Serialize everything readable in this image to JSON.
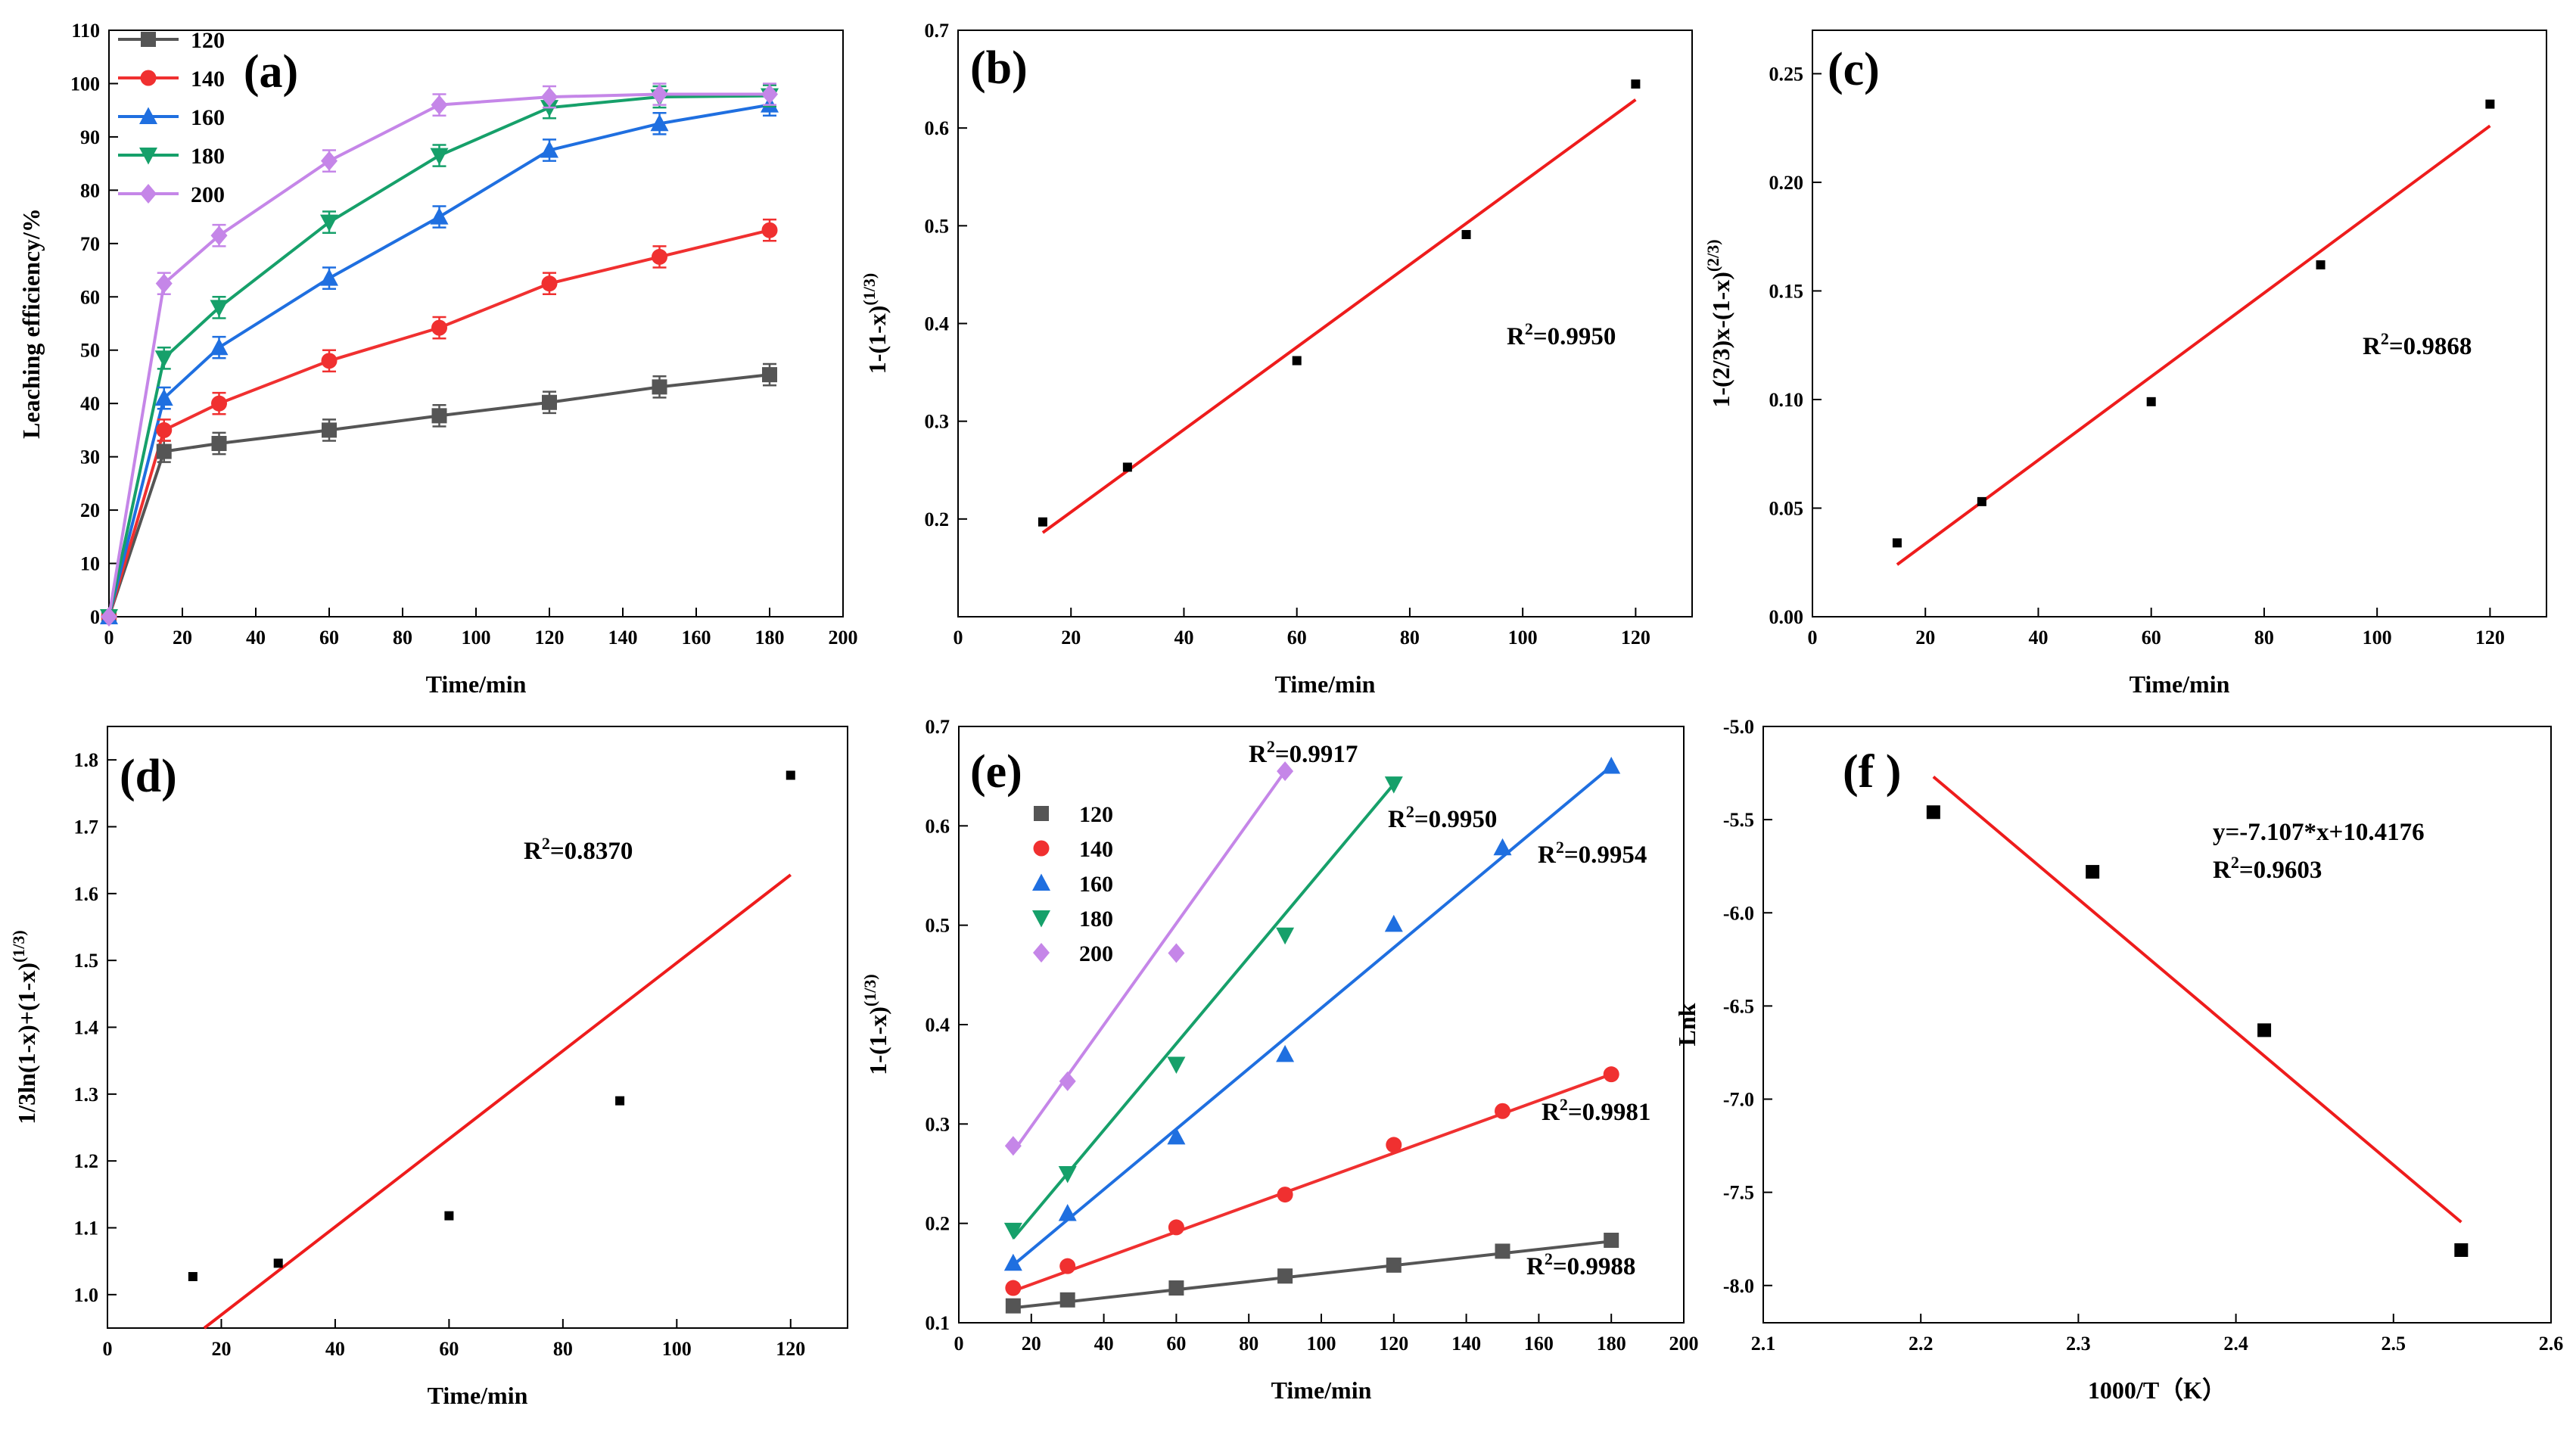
{
  "chart_data": [
    {
      "id": "a",
      "type": "line",
      "panel_label": "(a)",
      "xlabel": "Time/min",
      "ylabel": "Leaching efficiency/%",
      "xlim": [
        0,
        200
      ],
      "ylim": [
        0,
        110
      ],
      "xticks": [
        0,
        20,
        40,
        60,
        80,
        100,
        120,
        140,
        160,
        180,
        200
      ],
      "yticks": [
        0,
        10,
        20,
        30,
        40,
        50,
        60,
        70,
        80,
        90,
        100,
        110
      ],
      "legend": {
        "placement": "top-left"
      },
      "x": [
        0,
        15,
        30,
        60,
        90,
        120,
        150,
        180
      ],
      "series": [
        {
          "name": "120",
          "color": "#555555",
          "marker": "square",
          "values": [
            0,
            31,
            32.5,
            35,
            37.7,
            40.2,
            43.1,
            45.4
          ],
          "error": 2
        },
        {
          "name": "140",
          "color": "#f03030",
          "marker": "circle",
          "values": [
            0,
            35,
            40,
            48,
            54.2,
            62.5,
            67.5,
            72.5
          ],
          "error": 2
        },
        {
          "name": "160",
          "color": "#1f6fe0",
          "marker": "triangle-up",
          "values": [
            0,
            41,
            50.5,
            63.5,
            75,
            87.5,
            92.5,
            96
          ],
          "error": 2
        },
        {
          "name": "180",
          "color": "#16a06a",
          "marker": "triangle-down",
          "values": [
            0,
            48.5,
            58,
            74,
            86.5,
            95.5,
            97.5,
            97.7
          ],
          "error": 2
        },
        {
          "name": "200",
          "color": "#c586e8",
          "marker": "diamond",
          "values": [
            0,
            62.5,
            71.5,
            85.5,
            96,
            97.5,
            98,
            98
          ],
          "error": 2
        }
      ]
    },
    {
      "id": "b",
      "type": "scatter",
      "panel_label": "(b)",
      "xlabel": "Time/min",
      "ylabel": "1-(1-x)^(1/3)",
      "xlim": [
        0,
        130
      ],
      "ylim": [
        0.1,
        0.7
      ],
      "xticks": [
        0,
        20,
        40,
        60,
        80,
        100,
        120
      ],
      "yticks": [
        0.2,
        0.3,
        0.4,
        0.5,
        0.6,
        0.7
      ],
      "points": [
        {
          "x": 15,
          "y": 0.197
        },
        {
          "x": 30,
          "y": 0.253
        },
        {
          "x": 60,
          "y": 0.362
        },
        {
          "x": 90,
          "y": 0.491
        },
        {
          "x": 120,
          "y": 0.645
        }
      ],
      "fit": {
        "x": [
          15,
          120
        ],
        "y": [
          0.186,
          0.629
        ],
        "color": "#ee1c1c"
      },
      "annotation": "R²=0.9950"
    },
    {
      "id": "c",
      "type": "scatter",
      "panel_label": "(c)",
      "xlabel": "Time/min",
      "ylabel": "1-(2/3)x-(1-x)^(2/3)",
      "xlim": [
        0,
        130
      ],
      "ylim": [
        0,
        0.27
      ],
      "xticks": [
        0,
        20,
        40,
        60,
        80,
        100,
        120
      ],
      "yticks": [
        0.0,
        0.05,
        0.1,
        0.15,
        0.2,
        0.25
      ],
      "points": [
        {
          "x": 15,
          "y": 0.034
        },
        {
          "x": 30,
          "y": 0.053
        },
        {
          "x": 60,
          "y": 0.099
        },
        {
          "x": 90,
          "y": 0.162
        },
        {
          "x": 120,
          "y": 0.236
        }
      ],
      "fit": {
        "x": [
          15,
          120
        ],
        "y": [
          0.024,
          0.226
        ],
        "color": "#ee1c1c"
      },
      "annotation": "R²=0.9868"
    },
    {
      "id": "d",
      "type": "scatter",
      "panel_label": "(d)",
      "xlabel": "Time/min",
      "ylabel": "1/3ln(1-x)+(1-x)^(1/3)",
      "xlim": [
        0,
        130
      ],
      "ylim": [
        0.95,
        1.85
      ],
      "xticks": [
        0,
        20,
        40,
        60,
        80,
        100,
        120
      ],
      "yticks": [
        1.0,
        1.1,
        1.2,
        1.3,
        1.4,
        1.5,
        1.6,
        1.7,
        1.8
      ],
      "points": [
        {
          "x": 15,
          "y": 1.027
        },
        {
          "x": 30,
          "y": 1.047
        },
        {
          "x": 60,
          "y": 1.118
        },
        {
          "x": 90,
          "y": 1.29
        },
        {
          "x": 120,
          "y": 1.777
        }
      ],
      "fit": {
        "x": [
          17,
          120
        ],
        "y": [
          0.95,
          1.628
        ],
        "color": "#ee1c1c"
      },
      "annotation": "R²=0.8370"
    },
    {
      "id": "e",
      "type": "scatter",
      "panel_label": "(e)",
      "xlabel": "Time/min",
      "ylabel": "1-(1-x)^(1/3)",
      "xlim": [
        0,
        200
      ],
      "ylim": [
        0.1,
        0.7
      ],
      "xticks": [
        0,
        20,
        40,
        60,
        80,
        100,
        120,
        140,
        160,
        180,
        200
      ],
      "yticks": [
        0.1,
        0.2,
        0.3,
        0.4,
        0.5,
        0.6,
        0.7
      ],
      "legend": {
        "placement": "top-left"
      },
      "series": [
        {
          "name": "120",
          "color": "#555555",
          "marker": "square",
          "x": [
            15,
            30,
            60,
            90,
            120,
            150,
            180
          ],
          "y": [
            0.117,
            0.123,
            0.135,
            0.147,
            0.158,
            0.172,
            0.183
          ],
          "fit": [
            [
              15,
              0.115
            ],
            [
              180,
              0.182
            ]
          ],
          "r2": "R²=0.9988"
        },
        {
          "name": "140",
          "color": "#f03030",
          "marker": "circle",
          "x": [
            15,
            30,
            60,
            90,
            120,
            150,
            180
          ],
          "y": [
            0.135,
            0.157,
            0.196,
            0.229,
            0.279,
            0.313,
            0.35
          ],
          "fit": [
            [
              15,
              0.132
            ],
            [
              180,
              0.35
            ]
          ],
          "r2": "R²=0.9981"
        },
        {
          "name": "160",
          "color": "#1f6fe0",
          "marker": "triangle-up",
          "x": [
            15,
            30,
            60,
            90,
            120,
            150,
            180
          ],
          "y": [
            0.16,
            0.21,
            0.287,
            0.37,
            0.501,
            0.578,
            0.66
          ],
          "fit": [
            [
              15,
              0.158
            ],
            [
              180,
              0.66
            ]
          ],
          "r2": "R²=0.9954"
        },
        {
          "name": "180",
          "color": "#16a06a",
          "marker": "triangle-down",
          "x": [
            15,
            30,
            60,
            90,
            120
          ],
          "y": [
            0.193,
            0.25,
            0.36,
            0.49,
            0.642
          ],
          "fit": [
            [
              15,
              0.185
            ],
            [
              120,
              0.642
            ]
          ],
          "r2": "R²=0.9950"
        },
        {
          "name": "200",
          "color": "#c586e8",
          "marker": "diamond",
          "x": [
            15,
            30,
            60,
            90
          ],
          "y": [
            0.278,
            0.343,
            0.472,
            0.655
          ],
          "fit": [
            [
              15,
              0.272
            ],
            [
              90,
              0.655
            ]
          ],
          "r2": "R²=0.9917"
        }
      ]
    },
    {
      "id": "f",
      "type": "scatter",
      "panel_label": "(f )",
      "xlabel": "1000/T（K）",
      "ylabel": "Lnk",
      "xlim": [
        2.1,
        2.6
      ],
      "ylim": [
        -8.2,
        -5.0
      ],
      "xticks": [
        2.1,
        2.2,
        2.3,
        2.4,
        2.5,
        2.6
      ],
      "yticks": [
        -8.0,
        -7.5,
        -7.0,
        -6.5,
        -6.0,
        -5.5,
        -5.0
      ],
      "points": [
        {
          "x": 2.208,
          "y": -5.46
        },
        {
          "x": 2.309,
          "y": -5.78
        },
        {
          "x": 2.418,
          "y": -6.63
        },
        {
          "x": 2.543,
          "y": -7.81
        }
      ],
      "fit": {
        "x": [
          2.208,
          2.543
        ],
        "y": [
          -5.27,
          -7.66
        ],
        "color": "#ee1c1c"
      },
      "annotation": "y=-7.107*x+10.4176",
      "annotation2": "R²=0.9603"
    }
  ]
}
